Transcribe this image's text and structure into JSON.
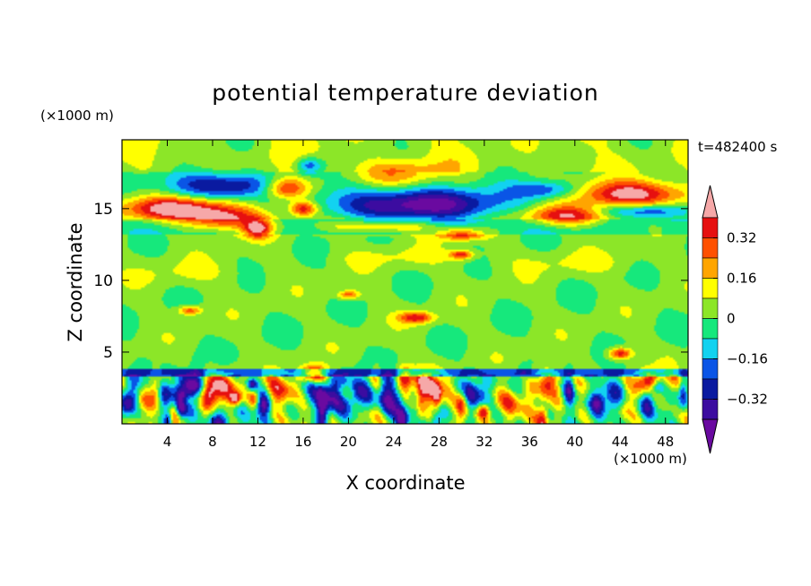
{
  "chart_data": {
    "type": "heatmap",
    "title": "potential temperature deviation",
    "xlabel": "X coordinate",
    "ylabel": "Z coordinate",
    "x_unit": "(×1000 m)",
    "y_unit": "(×1000 m)",
    "time_label": "t=482400 s",
    "xlim": [
      0,
      50
    ],
    "ylim": [
      0,
      19.8
    ],
    "x_ticks": [
      4,
      8,
      12,
      16,
      20,
      24,
      28,
      32,
      36,
      40,
      44,
      48
    ],
    "y_ticks": [
      5,
      10,
      15
    ],
    "colorbar": {
      "levels": [
        -0.4,
        -0.32,
        -0.24,
        -0.16,
        -0.08,
        0,
        0.08,
        0.16,
        0.24,
        0.32,
        0.4
      ],
      "tick_labels": [
        "0.32",
        "0.16",
        "0",
        "−0.16",
        "−0.32"
      ],
      "tick_values": [
        0.32,
        0.16,
        0,
        -0.16,
        -0.32
      ],
      "colors": [
        "#6a0aa0",
        "#3c0ca0",
        "#0a1aa0",
        "#0a55e6",
        "#12d2f0",
        "#16e87c",
        "#8ce628",
        "#ffff00",
        "#ffa500",
        "#ff5000",
        "#e61010",
        "#f6a8a8"
      ],
      "extend": "both"
    },
    "blobs": [
      {
        "x": 5,
        "y": 15,
        "rx": 5,
        "ry": 0.8,
        "v": 0.45
      },
      {
        "x": 9,
        "y": 14.2,
        "rx": 3.5,
        "ry": 0.8,
        "v": 0.36
      },
      {
        "x": 12,
        "y": 13.6,
        "rx": 1.2,
        "ry": 0.6,
        "v": 0.42
      },
      {
        "x": 9,
        "y": 16.6,
        "rx": 5,
        "ry": 0.9,
        "v": -0.38
      },
      {
        "x": 14.5,
        "y": 16.4,
        "rx": 2,
        "ry": 0.8,
        "v": 0.45
      },
      {
        "x": 16,
        "y": 15,
        "rx": 1.2,
        "ry": 0.5,
        "v": 0.4
      },
      {
        "x": 16.5,
        "y": 18,
        "rx": 1.2,
        "ry": 0.6,
        "v": -0.3
      },
      {
        "x": 26,
        "y": 15.3,
        "rx": 8,
        "ry": 1.1,
        "v": -0.46
      },
      {
        "x": 24,
        "y": 17.5,
        "rx": 4,
        "ry": 0.9,
        "v": 0.2
      },
      {
        "x": 23,
        "y": 13.8,
        "rx": 5,
        "ry": 0.5,
        "v": 0.28
      },
      {
        "x": 30,
        "y": 13.2,
        "rx": 2,
        "ry": 0.4,
        "v": 0.33
      },
      {
        "x": 37.5,
        "y": 16.3,
        "rx": 3,
        "ry": 0.6,
        "v": -0.28
      },
      {
        "x": 39.5,
        "y": 14.5,
        "rx": 4,
        "ry": 0.7,
        "v": 0.4
      },
      {
        "x": 45,
        "y": 16,
        "rx": 5,
        "ry": 0.9,
        "v": 0.44
      },
      {
        "x": 46,
        "y": 14.8,
        "rx": 4,
        "ry": 0.5,
        "v": -0.3
      },
      {
        "x": 25,
        "y": 11.6,
        "rx": 6,
        "ry": 0.7,
        "v": 0.07
      },
      {
        "x": 40,
        "y": 11.2,
        "rx": 6,
        "ry": 0.8,
        "v": 0.07
      },
      {
        "x": 6,
        "y": 10.5,
        "rx": 5,
        "ry": 0.9,
        "v": 0.07
      },
      {
        "x": 30,
        "y": 11.8,
        "rx": 1,
        "ry": 0.3,
        "v": 0.34
      },
      {
        "x": 26,
        "y": 7.4,
        "rx": 1.5,
        "ry": 0.4,
        "v": 0.36
      },
      {
        "x": 20,
        "y": 9.0,
        "rx": 1,
        "ry": 0.3,
        "v": 0.28
      },
      {
        "x": 6,
        "y": 7.9,
        "rx": 1,
        "ry": 0.3,
        "v": 0.3
      },
      {
        "x": 44,
        "y": 4.9,
        "rx": 1,
        "ry": 0.4,
        "v": 0.38
      },
      {
        "x": 17,
        "y": 3.5,
        "rx": 1.2,
        "ry": 0.6,
        "v": 0.45
      },
      {
        "x": 19.5,
        "y": 2,
        "rx": 2.5,
        "ry": 1.2,
        "v": -0.45
      },
      {
        "x": 23.5,
        "y": 1.8,
        "rx": 1.5,
        "ry": 1.3,
        "v": -0.4
      },
      {
        "x": 4.5,
        "y": 2,
        "rx": 1.5,
        "ry": 1.2,
        "v": -0.35
      },
      {
        "x": 9,
        "y": 2.2,
        "rx": 1.5,
        "ry": 1.2,
        "v": 0.35
      },
      {
        "x": 14,
        "y": 2.2,
        "rx": 1.3,
        "ry": 1,
        "v": 0.3
      },
      {
        "x": 27,
        "y": 2.5,
        "rx": 1.5,
        "ry": 1.2,
        "v": 0.34
      },
      {
        "x": 31,
        "y": 2.2,
        "rx": 1.3,
        "ry": 1.1,
        "v": -0.3
      },
      {
        "x": 37.5,
        "y": 2.8,
        "rx": 1.2,
        "ry": 1,
        "v": 0.4
      },
      {
        "x": 43,
        "y": 1.8,
        "rx": 1.5,
        "ry": 1.1,
        "v": -0.36
      },
      {
        "x": 46.5,
        "y": 3,
        "rx": 1,
        "ry": 0.6,
        "v": 0.35
      },
      {
        "x": 34,
        "y": 1.5,
        "rx": 1.5,
        "ry": 1,
        "v": 0.25
      },
      {
        "x": 1.5,
        "y": 1.5,
        "rx": 1,
        "ry": 1,
        "v": 0.3
      }
    ]
  }
}
